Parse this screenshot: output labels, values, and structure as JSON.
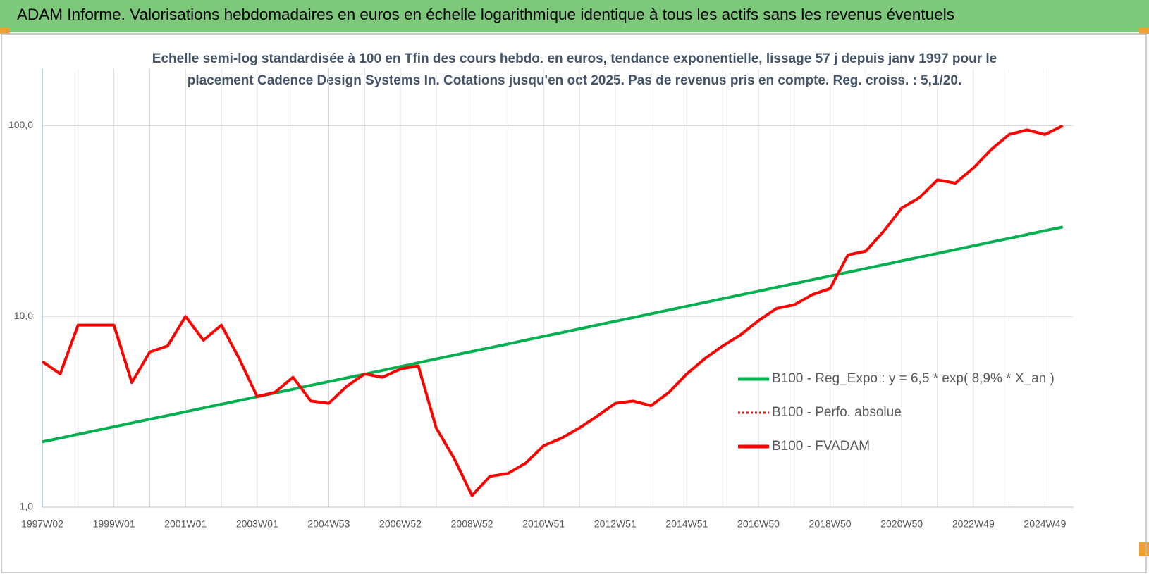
{
  "header": {
    "title": "ADAM Informe. Valorisations hebdomadaires en euros en échelle logarithmique identique à tous les actifs sans les revenus éventuels"
  },
  "chart_data": {
    "type": "line",
    "subtitle": [
      "Echelle semi-log standardisée à 100 en Tfin des cours hebdo. en euros, tendance exponentielle, lissage 57 j depuis janv 1997 pour le",
      "placement Cadence Design Systems In. Cotations jusqu'en oct 2025. Pas de revenus pris en compte. Reg. croiss. : 5,1/20."
    ],
    "categories": [
      "1997W02",
      null,
      null,
      null,
      "1999W01",
      null,
      null,
      null,
      "2001W01",
      null,
      null,
      null,
      "2003W01",
      null,
      null,
      null,
      "2004W53",
      null,
      null,
      null,
      "2006W52",
      null,
      null,
      null,
      "2008W52",
      null,
      null,
      null,
      "2010W51",
      null,
      null,
      null,
      "2012W51",
      null,
      null,
      null,
      "2014W51",
      null,
      null,
      null,
      "2016W50",
      null,
      null,
      null,
      "2018W50",
      null,
      null,
      null,
      "2020W50",
      null,
      null,
      null,
      "2022W49",
      null,
      null,
      null,
      "2024W49",
      null
    ],
    "series": [
      {
        "name": "B100 - Reg_Expo : y = 6,5 * exp( 8,9% *  X_an )",
        "color": "#00b050",
        "style": "solid",
        "values": [
          2.2,
          2.3,
          2.41,
          2.52,
          2.64,
          2.76,
          2.89,
          3.02,
          3.16,
          3.31,
          3.46,
          3.62,
          3.79,
          3.97,
          4.15,
          4.35,
          4.55,
          4.76,
          4.98,
          5.21,
          5.46,
          5.71,
          5.98,
          6.26,
          6.55,
          6.85,
          7.17,
          7.51,
          7.86,
          8.22,
          8.6,
          9.01,
          9.43,
          9.86,
          10.32,
          10.8,
          11.31,
          11.84,
          12.39,
          12.97,
          13.57,
          14.2,
          14.86,
          15.56,
          16.28,
          17.04,
          17.84,
          18.67,
          19.54,
          20.45,
          21.4,
          22.4,
          23.44,
          24.54,
          25.68,
          26.88,
          28.13,
          29.44
        ]
      },
      {
        "name": "B100 - Perfo. absolue",
        "color": "#ff0000",
        "style": "dotted",
        "values": [
          5.8,
          5.0,
          9,
          9,
          9,
          4.5,
          6.5,
          7,
          10,
          7.5,
          9,
          6,
          3.8,
          4.0,
          4.8,
          3.6,
          3.5,
          4.3,
          5.0,
          4.8,
          5.3,
          5.5,
          2.6,
          1.8,
          1.15,
          1.45,
          1.5,
          1.7,
          2.1,
          2.3,
          2.6,
          3.0,
          3.5,
          3.6,
          3.4,
          4.0,
          5.0,
          6.0,
          7.0,
          8.0,
          9.5,
          11,
          11.5,
          13,
          14,
          21,
          22,
          28,
          37,
          42,
          52,
          50,
          60,
          75,
          90,
          95,
          90,
          100
        ]
      },
      {
        "name": "B100 - FVADAM",
        "color": "#ff0000",
        "style": "solid",
        "values": [
          5.8,
          5.0,
          9,
          9,
          9,
          4.5,
          6.5,
          7,
          10,
          7.5,
          9,
          6,
          3.8,
          4.0,
          4.8,
          3.6,
          3.5,
          4.3,
          5.0,
          4.8,
          5.3,
          5.5,
          2.6,
          1.8,
          1.15,
          1.45,
          1.5,
          1.7,
          2.1,
          2.3,
          2.6,
          3.0,
          3.5,
          3.6,
          3.4,
          4.0,
          5.0,
          6.0,
          7.0,
          8.0,
          9.5,
          11,
          11.5,
          13,
          14,
          21,
          22,
          28,
          37,
          42,
          52,
          50,
          60,
          75,
          90,
          95,
          90,
          100
        ]
      }
    ],
    "ylog": true,
    "ylim": [
      1,
      200
    ],
    "yticks": [
      {
        "value": 1,
        "label": "1,0"
      },
      {
        "value": 10,
        "label": "10,0"
      },
      {
        "value": 100,
        "label": "100,0"
      }
    ],
    "grid": true,
    "legend": "right"
  }
}
